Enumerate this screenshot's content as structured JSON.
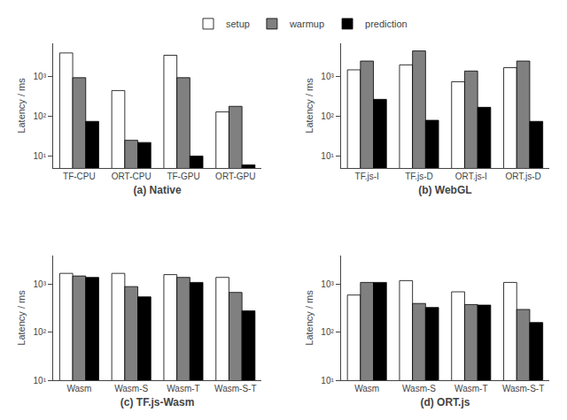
{
  "chart_data": [
    {
      "type": "bar",
      "xlabel": "(a) Native",
      "ylabel": "Latency / ms",
      "categories": [
        "TF-CPU",
        "ORT-CPU",
        "TF-GPU",
        "ORT-GPU"
      ],
      "series": [
        {
          "name": "setup",
          "color": "white",
          "values": [
            4000,
            450,
            3500,
            130
          ]
        },
        {
          "name": "warmup",
          "color": "#808080",
          "values": [
            950,
            25,
            950,
            180
          ]
        },
        {
          "name": "prediction",
          "color": "black",
          "values": [
            75,
            22,
            10,
            6
          ]
        }
      ],
      "log": "y",
      "ylim": [
        5,
        7000
      ],
      "yticks": [
        {
          "value": 10,
          "label": "10¹"
        },
        {
          "value": 100,
          "label": "10²"
        },
        {
          "value": 1000,
          "label": "10³"
        }
      ],
      "grid": false,
      "legend": "upper center"
    },
    {
      "type": "bar",
      "xlabel": "(b) WebGL",
      "ylabel": "Latency / ms",
      "categories": [
        "TF.js-I",
        "TF.js-D",
        "ORT.js-I",
        "ORT.js-D"
      ],
      "series": [
        {
          "name": "setup",
          "color": "white",
          "values": [
            1500,
            2000,
            750,
            1700
          ]
        },
        {
          "name": "warmup",
          "color": "#808080",
          "values": [
            2500,
            4500,
            1400,
            2500
          ]
        },
        {
          "name": "prediction",
          "color": "black",
          "values": [
            270,
            80,
            170,
            75
          ]
        }
      ],
      "log": "y",
      "ylim": [
        5,
        7000
      ],
      "yticks": [
        {
          "value": 10,
          "label": "10¹"
        },
        {
          "value": 100,
          "label": "10²"
        },
        {
          "value": 1000,
          "label": "10³"
        }
      ],
      "grid": false
    },
    {
      "type": "bar",
      "xlabel": "(c) TF.js-Wasm",
      "ylabel": "Latency / ms",
      "categories": [
        "Wasm",
        "Wasm-S",
        "Wasm-T",
        "Wasm-S-T"
      ],
      "series": [
        {
          "name": "setup",
          "color": "white",
          "values": [
            1700,
            1700,
            1600,
            1400
          ]
        },
        {
          "name": "warmup",
          "color": "#808080",
          "values": [
            1500,
            900,
            1400,
            680
          ]
        },
        {
          "name": "prediction",
          "color": "black",
          "values": [
            1400,
            550,
            1100,
            280
          ]
        }
      ],
      "log": "y",
      "ylim": [
        10,
        4000
      ],
      "yticks": [
        {
          "value": 10,
          "label": "10¹"
        },
        {
          "value": 100,
          "label": "10²"
        },
        {
          "value": 1000,
          "label": "10³"
        }
      ],
      "grid": false
    },
    {
      "type": "bar",
      "xlabel": "(d) ORT.js",
      "ylabel": "Latency / ms",
      "categories": [
        "Wasm",
        "Wasm-S",
        "Wasm-T",
        "Wasm-S-T"
      ],
      "series": [
        {
          "name": "setup",
          "color": "white",
          "values": [
            600,
            1200,
            700,
            1100
          ]
        },
        {
          "name": "warmup",
          "color": "#808080",
          "values": [
            1100,
            400,
            380,
            300
          ]
        },
        {
          "name": "prediction",
          "color": "black",
          "values": [
            1100,
            330,
            370,
            160
          ]
        }
      ],
      "log": "y",
      "ylim": [
        10,
        4000
      ],
      "yticks": [
        {
          "value": 10,
          "label": "10¹"
        },
        {
          "value": 100,
          "label": "10²"
        },
        {
          "value": 1000,
          "label": "10³"
        }
      ],
      "grid": false
    }
  ]
}
